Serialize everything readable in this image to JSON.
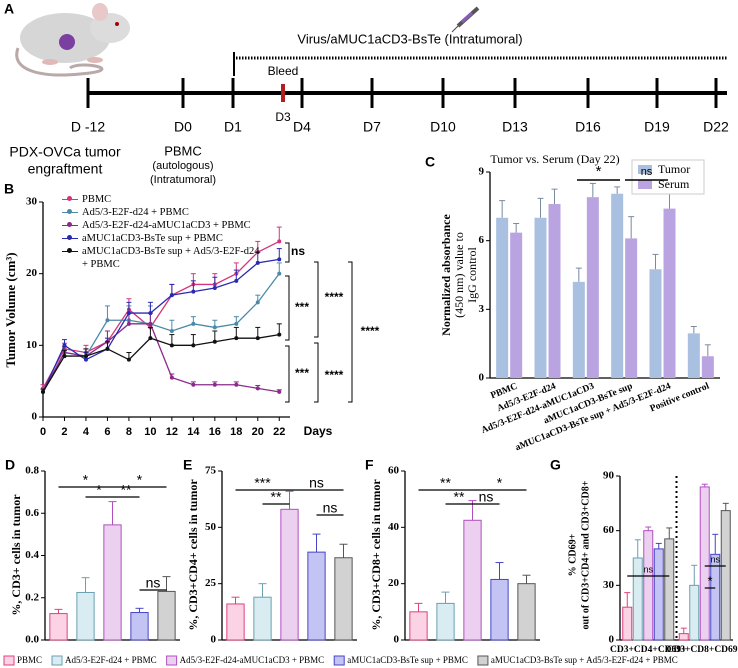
{
  "timeline": {
    "panel": "A",
    "treatment": "Virus/aMUC1aCD3-BsTe (Intratumoral)",
    "bleed": "Bleed",
    "days": [
      "D -12",
      "D0",
      "D1",
      "D3",
      "D4",
      "D7",
      "D10",
      "D13",
      "D16",
      "D19",
      "D22"
    ],
    "engraftment": [
      "PDX-OVCa tumor",
      "engraftment"
    ],
    "pbmc": [
      "PBMC",
      "(autologous)",
      "(Intratumoral)"
    ]
  },
  "chart_data": [
    {
      "panel": "B",
      "type": "line",
      "ylabel": "Tumor Volume (cm³)",
      "xlabel": "Days",
      "x": [
        0,
        2,
        4,
        6,
        8,
        10,
        12,
        14,
        16,
        18,
        20,
        22
      ],
      "xlim": [
        0,
        23
      ],
      "xticks": [
        0,
        2,
        4,
        6,
        8,
        10,
        12,
        14,
        16,
        18,
        20,
        22
      ],
      "ylim": [
        0,
        30
      ],
      "yticks": [
        0,
        10,
        20,
        30
      ],
      "series": [
        {
          "name": "PBMC",
          "color": "#d6337a",
          "values": [
            4,
            9.5,
            9,
            10.5,
            15,
            12.5,
            17,
            18.5,
            18.5,
            20,
            23,
            24.5
          ],
          "errors": [
            0.5,
            0.8,
            1,
            1.5,
            1.5,
            2,
            1.5,
            1.5,
            1.5,
            1.5,
            1.5,
            2
          ]
        },
        {
          "name": "Ad5/3-E2F-d24 + PBMC",
          "color": "#4a8aa8",
          "values": [
            3.5,
            9,
            8.5,
            13.5,
            13.5,
            13,
            12,
            13,
            12.5,
            13,
            16,
            20
          ],
          "errors": [
            0.4,
            0.8,
            1,
            2,
            2,
            2.5,
            1.5,
            1,
            1,
            1,
            1,
            1.5
          ]
        },
        {
          "name": "Ad5/3-E2F-d24-aMUC1aCD3 + PBMC",
          "color": "#8b2a8b",
          "values": [
            3.5,
            9,
            8.5,
            10.5,
            13,
            13,
            5.5,
            4.5,
            4.5,
            4.5,
            4,
            3.5
          ],
          "errors": [
            0.4,
            0.8,
            1,
            1.5,
            1.5,
            1.5,
            0.5,
            0.4,
            0.4,
            0.4,
            0.4,
            0.3
          ]
        },
        {
          "name": "aMUC1aCD3-BsTe sup + PBMC",
          "color": "#2a2ab0",
          "values": [
            3.5,
            10,
            8,
            9.5,
            14.5,
            14.5,
            17,
            17.5,
            18,
            19,
            21.5,
            22
          ],
          "errors": [
            0.4,
            0.8,
            1,
            1.5,
            1.5,
            1.5,
            1.5,
            1.5,
            1.5,
            1.5,
            1.5,
            1.5
          ]
        },
        {
          "name": "aMUC1aCD3-BsTe sup + Ad5/3-E2F-d24 + PBMC",
          "color": "#111111",
          "values": [
            3.5,
            8.5,
            8.5,
            9.5,
            8,
            11,
            10,
            10,
            10.5,
            11,
            11,
            11.5
          ],
          "errors": [
            0.4,
            0.8,
            1,
            1,
            1,
            1.5,
            1.5,
            1.5,
            1.5,
            1.5,
            1.5,
            1.5
          ]
        }
      ],
      "annotations": [
        "ns",
        "***",
        "****",
        "****",
        "***",
        "****"
      ]
    },
    {
      "panel": "C",
      "type": "grouped-bar",
      "title": "Tumor vs. Serum (Day 22)",
      "ylabel": [
        "Normalized absorbance",
        "(450 nm) value to",
        "IgG control"
      ],
      "categories": [
        "PBMC",
        "Ad5/3-E2F-d24",
        "Ad5/3-E2F-d24-aMUC1aCD3",
        "aMUC1aCD3-BsTe sup",
        "aMUC1aCD3-BsTe sup + Ad5/3-E2F-d24",
        "Positive control"
      ],
      "series": [
        {
          "name": "Tumor",
          "color": "#a9c0e0",
          "values": [
            7,
            7,
            4.2,
            8.05,
            4.75,
            1.95
          ],
          "errors": [
            0.75,
            0.85,
            0.6,
            0.3,
            0.65,
            0.3
          ]
        },
        {
          "name": "Serum",
          "color": "#b9a3e0",
          "values": [
            6.35,
            7.6,
            7.9,
            6.1,
            7.4,
            0.95
          ],
          "errors": [
            0.4,
            0.65,
            0.6,
            0.95,
            0.8,
            0.5
          ]
        }
      ],
      "ylim": [
        0,
        9
      ],
      "yticks": [
        0,
        3,
        6,
        9
      ],
      "annotations": [
        "*",
        "ns"
      ]
    },
    {
      "panel": "D",
      "type": "bar",
      "ylabel": "%, CD3+ cells in tumor",
      "values": [
        0.125,
        0.225,
        0.545,
        0.13,
        0.23
      ],
      "errors": [
        0.02,
        0.07,
        0.11,
        0.02,
        0.07
      ],
      "ylim": [
        0,
        0.8
      ],
      "yticks": [
        {
          "value": 0,
          "label": "0.0"
        },
        0.2,
        0.4,
        0.6,
        0.8
      ],
      "annotations": [
        "*",
        "*",
        "*",
        "**",
        "ns"
      ]
    },
    {
      "panel": "E",
      "type": "bar",
      "ylabel": "%, CD3+CD4+ cells in tumor",
      "values": [
        16,
        19,
        58,
        39,
        36.5
      ],
      "errors": [
        3,
        6,
        8,
        8,
        6
      ],
      "ylim": [
        0,
        75
      ],
      "yticks": [
        0,
        25,
        50,
        75
      ],
      "annotations": [
        "***",
        "**",
        "ns",
        "ns"
      ]
    },
    {
      "panel": "F",
      "type": "bar",
      "ylabel": "%, CD3+CD8+ cells in tumor",
      "values": [
        10,
        13,
        42.5,
        21.5,
        20
      ],
      "errors": [
        3,
        4,
        7,
        6,
        3
      ],
      "ylim": [
        0,
        60
      ],
      "yticks": [
        0,
        20,
        40,
        60
      ],
      "annotations": [
        "**",
        "**",
        "ns",
        "*"
      ]
    },
    {
      "panel": "G",
      "type": "group-bar",
      "ylabel": [
        "% CD69+",
        "out of CD3+CD4+ and CD3+CD8+"
      ],
      "categories": [
        "CD3+CD4+CD69+",
        "CD3+CD8+CD69+"
      ],
      "series": [
        {
          "values": [
            18,
            3.5
          ],
          "errors": [
            8,
            3
          ]
        },
        {
          "values": [
            45,
            30
          ],
          "errors": [
            10,
            11
          ]
        },
        {
          "values": [
            60,
            84
          ],
          "errors": [
            2,
            1.5
          ]
        },
        {
          "values": [
            50,
            47
          ],
          "errors": [
            3,
            11
          ]
        },
        {
          "values": [
            55.5,
            71
          ],
          "errors": [
            6,
            4
          ]
        }
      ],
      "ylim": [
        0,
        90
      ],
      "yticks": [
        0,
        30,
        60,
        90
      ],
      "annotations": [
        "ns",
        "ns",
        "*"
      ]
    }
  ],
  "legend": [
    {
      "name": "PBMC",
      "color": "#fbd3e4",
      "edge": "#e0407f"
    },
    {
      "name": "Ad5/3-E2F-d24 + PBMC",
      "color": "#d8ecf2",
      "edge": "#6aa0b0"
    },
    {
      "name": "Ad5/3-E2F-d24-aMUC1aCD3 + PBMC",
      "color": "#ecd0f0",
      "edge": "#b050c0"
    },
    {
      "name": "aMUC1aCD3-BsTe sup + PBMC",
      "color": "#c4c4f4",
      "edge": "#4545c8"
    },
    {
      "name": "aMUC1aCD3-BsTe sup + Ad5/3-E2F-d24 + PBMC",
      "color": "#d2d2d2",
      "edge": "#555555"
    }
  ]
}
